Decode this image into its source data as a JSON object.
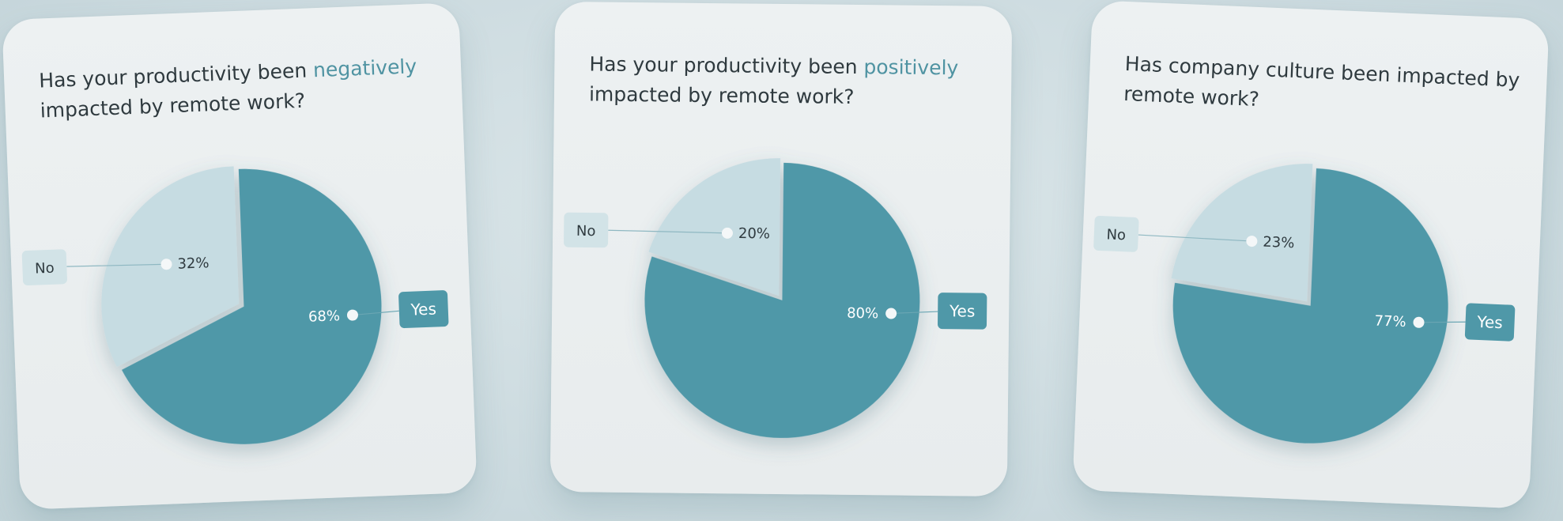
{
  "colors": {
    "yes": "#4f98a8",
    "no": "#c6dce2",
    "label_box_yes": "#4f98a8",
    "label_box_no": "#d2e3e7",
    "text_dark": "#2f3a3f",
    "highlight": "#4f93a2"
  },
  "chart_data": [
    {
      "type": "pie",
      "title_parts": [
        "Has your productivity been ",
        "negatively",
        " impacted by remote work?"
      ],
      "categories": [
        "Yes",
        "No"
      ],
      "values": [
        68,
        32
      ],
      "data_labels": [
        "68%",
        "32%"
      ]
    },
    {
      "type": "pie",
      "title_parts": [
        "Has your productivity been ",
        "positively",
        " impacted by remote work?"
      ],
      "categories": [
        "Yes",
        "No"
      ],
      "values": [
        80,
        20
      ],
      "data_labels": [
        "80%",
        "20%"
      ]
    },
    {
      "type": "pie",
      "title_parts": [
        "Has company culture been impacted by remote work?",
        "",
        ""
      ],
      "categories": [
        "Yes",
        "No"
      ],
      "values": [
        77,
        23
      ],
      "data_labels": [
        "77%",
        "23%"
      ]
    }
  ]
}
